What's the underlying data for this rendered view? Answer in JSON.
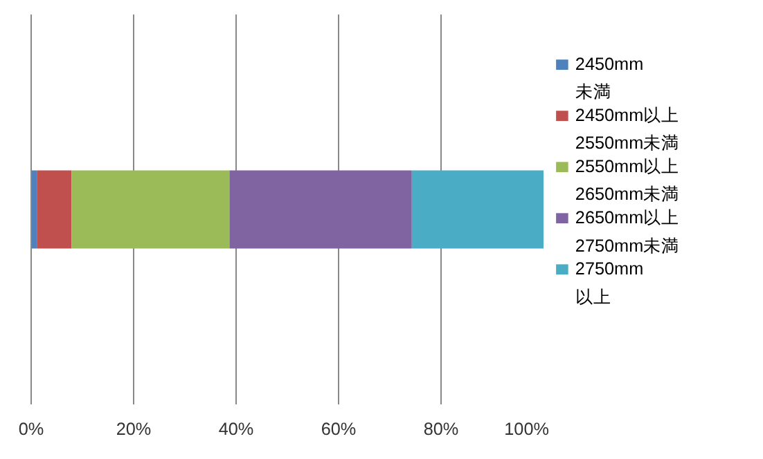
{
  "chart_data": {
    "type": "bar",
    "orientation": "horizontal",
    "stacked": true,
    "categories": [
      null
    ],
    "series": [
      {
        "name": "2450mm\n未満",
        "color": "#4f81bd",
        "values": [
          1.2
        ]
      },
      {
        "name": "2450mm以上\n2550mm未満",
        "color": "#c0504d",
        "values": [
          6.7
        ]
      },
      {
        "name": "2550mm以上\n2650mm未満",
        "color": "#9bbb59",
        "values": [
          30.8
        ]
      },
      {
        "name": "2650mm以上\n2750mm未満",
        "color": "#8064a2",
        "values": [
          35.6
        ]
      },
      {
        "name": "2750mm\n以上",
        "color": "#4bacc6",
        "values": [
          25.7
        ]
      }
    ],
    "xlim": [
      0,
      100
    ],
    "xticks": [
      {
        "value": 0,
        "label": "0%"
      },
      {
        "value": 20,
        "label": "20%"
      },
      {
        "value": 40,
        "label": "40%"
      },
      {
        "value": 60,
        "label": "60%"
      },
      {
        "value": 80,
        "label": "80%"
      },
      {
        "value": 100,
        "label": "100%"
      }
    ],
    "grid": "x",
    "legend": "right"
  }
}
